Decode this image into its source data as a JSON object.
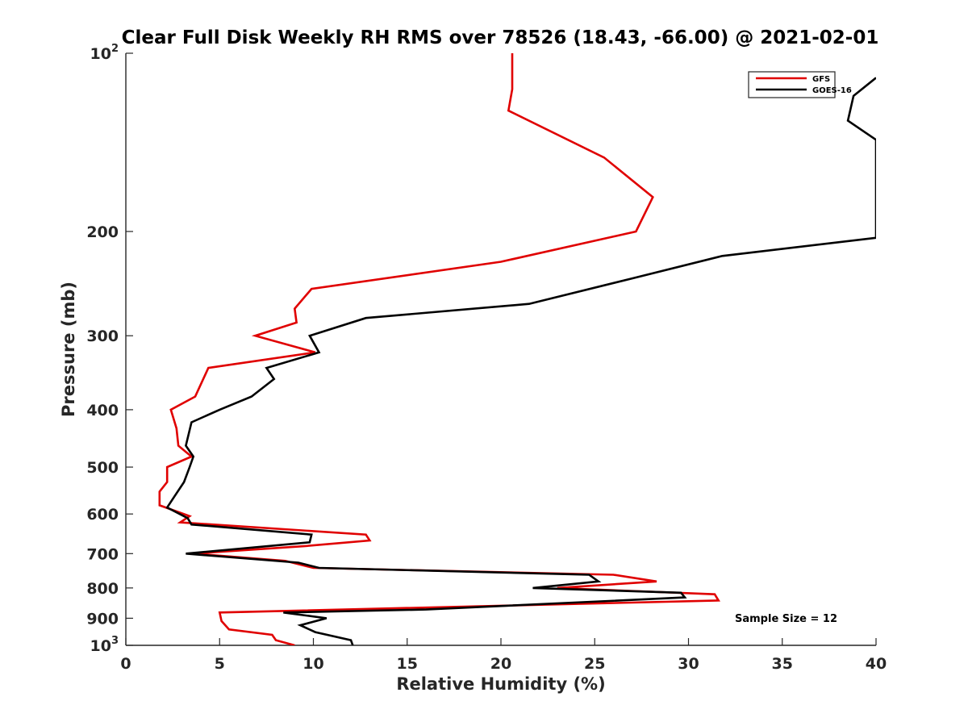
{
  "chart_data": {
    "type": "line",
    "title": "Clear Full Disk Weekly RH RMS over 78526 (18.43, -66.00) @ 2021-02-01",
    "xlabel": "Relative Humidity (%)",
    "ylabel": "Pressure (mb)",
    "xlim": [
      0,
      40
    ],
    "ylim": [
      100,
      1000
    ],
    "y_scale": "log",
    "y_reversed": true,
    "x_ticks": [
      0,
      5,
      10,
      15,
      20,
      25,
      30,
      35,
      40
    ],
    "x_tick_labels": [
      "0",
      "5",
      "10",
      "15",
      "20",
      "25",
      "30",
      "35",
      "40"
    ],
    "y_ticks": [
      100,
      200,
      300,
      400,
      500,
      600,
      700,
      800,
      900,
      1000
    ],
    "y_tick_labels": [
      {
        "base": "10",
        "exp": "2"
      },
      {
        "base": "200",
        "exp": ""
      },
      {
        "base": "300",
        "exp": ""
      },
      {
        "base": "400",
        "exp": ""
      },
      {
        "base": "500",
        "exp": ""
      },
      {
        "base": "600",
        "exp": ""
      },
      {
        "base": "700",
        "exp": ""
      },
      {
        "base": "800",
        "exp": ""
      },
      {
        "base": "900",
        "exp": ""
      },
      {
        "base": "10",
        "exp": "3"
      }
    ],
    "grid": false,
    "legend_position": "top-right",
    "annotation": "Sample Size = 12",
    "series": [
      {
        "name": "GFS",
        "color": "#e00000",
        "points": [
          [
            20.6,
            100
          ],
          [
            20.6,
            115
          ],
          [
            20.4,
            125
          ],
          [
            25.5,
            150
          ],
          [
            28.1,
            175
          ],
          [
            27.2,
            200
          ],
          [
            20.0,
            225
          ],
          [
            9.9,
            250
          ],
          [
            9.0,
            270
          ],
          [
            9.1,
            285
          ],
          [
            6.9,
            300
          ],
          [
            10.1,
            320
          ],
          [
            4.4,
            340
          ],
          [
            3.7,
            380
          ],
          [
            2.4,
            400
          ],
          [
            2.7,
            430
          ],
          [
            2.8,
            460
          ],
          [
            3.5,
            480
          ],
          [
            2.2,
            500
          ],
          [
            2.2,
            530
          ],
          [
            1.8,
            550
          ],
          [
            1.8,
            570
          ],
          [
            1.8,
            580
          ],
          [
            3.4,
            605
          ],
          [
            2.9,
            620
          ],
          [
            12.8,
            650
          ],
          [
            13.0,
            665
          ],
          [
            9.5,
            680
          ],
          [
            3.6,
            700
          ],
          [
            8.5,
            720
          ],
          [
            10.0,
            740
          ],
          [
            26.0,
            760
          ],
          [
            28.3,
            780
          ],
          [
            23.0,
            800
          ],
          [
            31.4,
            820
          ],
          [
            31.6,
            840
          ],
          [
            5.0,
            880
          ],
          [
            5.1,
            910
          ],
          [
            5.5,
            940
          ],
          [
            7.8,
            960
          ],
          [
            8.0,
            980
          ],
          [
            9.0,
            1000
          ]
        ]
      },
      {
        "name": "GOES-16",
        "color": "#000000",
        "points": [
          [
            40.0,
            110
          ],
          [
            38.8,
            118
          ],
          [
            38.5,
            130
          ],
          [
            40.0,
            140
          ],
          [
            40.0,
            205
          ],
          [
            31.8,
            220
          ],
          [
            27.0,
            240
          ],
          [
            21.5,
            265
          ],
          [
            12.8,
            280
          ],
          [
            9.8,
            300
          ],
          [
            10.3,
            320
          ],
          [
            7.5,
            340
          ],
          [
            7.9,
            355
          ],
          [
            6.7,
            380
          ],
          [
            5.0,
            400
          ],
          [
            3.5,
            420
          ],
          [
            3.2,
            460
          ],
          [
            3.6,
            480
          ],
          [
            3.4,
            500
          ],
          [
            3.1,
            530
          ],
          [
            2.6,
            560
          ],
          [
            2.2,
            585
          ],
          [
            3.3,
            610
          ],
          [
            3.5,
            625
          ],
          [
            9.9,
            650
          ],
          [
            9.8,
            670
          ],
          [
            3.2,
            700
          ],
          [
            9.2,
            725
          ],
          [
            10.3,
            740
          ],
          [
            24.7,
            760
          ],
          [
            25.2,
            780
          ],
          [
            21.7,
            800
          ],
          [
            29.6,
            815
          ],
          [
            29.8,
            830
          ],
          [
            16.0,
            870
          ],
          [
            8.4,
            880
          ],
          [
            10.7,
            900
          ],
          [
            9.3,
            925
          ],
          [
            10.1,
            950
          ],
          [
            12.0,
            980
          ],
          [
            12.1,
            1000
          ]
        ]
      }
    ]
  }
}
